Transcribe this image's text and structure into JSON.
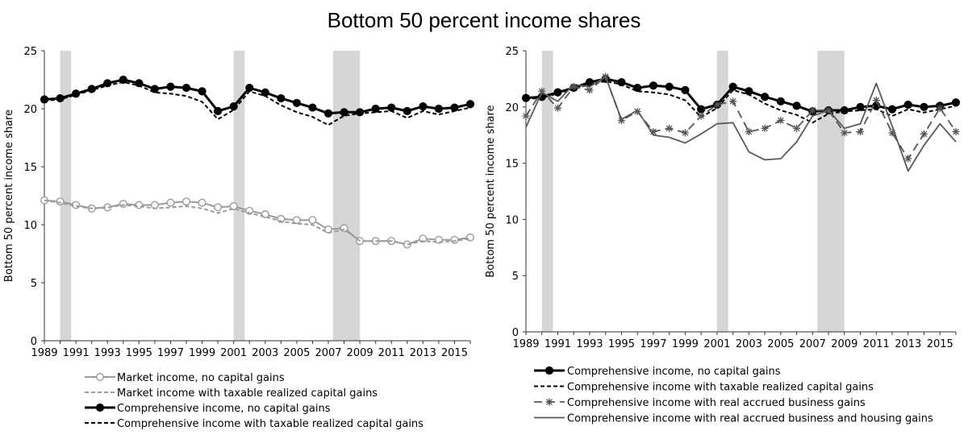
{
  "figure_title": "Bottom 50 percent income shares",
  "chart_data": [
    {
      "type": "line",
      "ylabel": "Bottom 50 percent income share",
      "ylim": [
        0,
        25
      ],
      "yticks": [
        "0",
        "5",
        "10",
        "15",
        "20",
        "25"
      ],
      "xlim": [
        1989,
        2016
      ],
      "xticks": [
        "1989",
        "1991",
        "1993",
        "1995",
        "1997",
        "1999",
        "2001",
        "2003",
        "2005",
        "2007",
        "2009",
        "2011",
        "2013",
        "2015"
      ],
      "recessions": [
        [
          1990,
          1990.7
        ],
        [
          2001,
          2001.7
        ],
        [
          2007.3,
          2009
        ]
      ],
      "x": [
        1989,
        1990,
        1991,
        1992,
        1993,
        1994,
        1995,
        1996,
        1997,
        1998,
        1999,
        2000,
        2001,
        2002,
        2003,
        2004,
        2005,
        2006,
        2007,
        2008,
        2009,
        2010,
        2011,
        2012,
        2013,
        2014,
        2015,
        2016
      ],
      "series": [
        {
          "name": "Market income, no capital gains",
          "style": "gray-open-circle",
          "color": "#9a9a9a",
          "values": [
            12.1,
            12.0,
            11.7,
            11.4,
            11.5,
            11.8,
            11.7,
            11.7,
            11.9,
            12.0,
            11.9,
            11.5,
            11.6,
            11.2,
            10.9,
            10.5,
            10.4,
            10.4,
            9.6,
            9.7,
            8.6,
            8.6,
            8.6,
            8.3,
            8.8,
            8.7,
            8.7,
            8.9
          ]
        },
        {
          "name": "Market income with taxable realized capital gains",
          "style": "gray-dashed",
          "color": "#9a9a9a",
          "values": [
            12.1,
            11.9,
            11.6,
            11.4,
            11.5,
            11.7,
            11.6,
            11.4,
            11.5,
            11.6,
            11.4,
            11.0,
            11.4,
            11.0,
            10.7,
            10.3,
            10.1,
            10.0,
            9.3,
            9.6,
            8.6,
            8.6,
            8.6,
            8.3,
            8.6,
            8.5,
            8.6,
            8.8
          ]
        },
        {
          "name": "Comprehensive income, no capital gains",
          "style": "black-filled-circle",
          "color": "#000000",
          "values": [
            20.8,
            20.9,
            21.3,
            21.7,
            22.2,
            22.5,
            22.2,
            21.7,
            21.9,
            21.8,
            21.5,
            19.8,
            20.2,
            21.8,
            21.4,
            20.9,
            20.5,
            20.1,
            19.6,
            19.7,
            19.7,
            20.0,
            20.1,
            19.8,
            20.2,
            20.0,
            20.1,
            20.4
          ]
        },
        {
          "name": "Comprehensive income with taxable realized capital gains",
          "style": "black-dashed",
          "color": "#000000",
          "values": [
            20.7,
            20.8,
            21.2,
            21.6,
            22.0,
            22.3,
            22.0,
            21.4,
            21.3,
            21.1,
            20.6,
            19.1,
            19.9,
            21.5,
            21.1,
            20.3,
            19.7,
            19.3,
            18.6,
            19.4,
            19.6,
            19.7,
            19.8,
            19.2,
            19.8,
            19.5,
            19.8,
            20.1
          ]
        }
      ],
      "legend": "bottom"
    },
    {
      "type": "line",
      "ylabel": "Bottom 50 percent income share",
      "ylim": [
        0,
        25
      ],
      "yticks": [
        "0",
        "5",
        "10",
        "15",
        "20",
        "25"
      ],
      "xlim": [
        1989,
        2016
      ],
      "xticks": [
        "1989",
        "1991",
        "1993",
        "1995",
        "1997",
        "1999",
        "2001",
        "2003",
        "2005",
        "2007",
        "2009",
        "2011",
        "2013",
        "2015"
      ],
      "recessions": [
        [
          1990,
          1990.7
        ],
        [
          2001,
          2001.7
        ],
        [
          2007.3,
          2009
        ]
      ],
      "x": [
        1989,
        1990,
        1991,
        1992,
        1993,
        1994,
        1995,
        1996,
        1997,
        1998,
        1999,
        2000,
        2001,
        2002,
        2003,
        2004,
        2005,
        2006,
        2007,
        2008,
        2009,
        2010,
        2011,
        2012,
        2013,
        2014,
        2015,
        2016
      ],
      "series": [
        {
          "name": "Comprehensive income, no capital gains",
          "style": "black-filled-circle",
          "color": "#000000",
          "values": [
            20.8,
            20.9,
            21.3,
            21.7,
            22.2,
            22.5,
            22.2,
            21.7,
            21.9,
            21.8,
            21.5,
            19.8,
            20.2,
            21.8,
            21.4,
            20.9,
            20.5,
            20.1,
            19.6,
            19.7,
            19.7,
            20.0,
            20.1,
            19.8,
            20.2,
            20.0,
            20.1,
            20.4
          ]
        },
        {
          "name": "Comprehensive income with taxable realized capital gains",
          "style": "black-dashed",
          "color": "#000000",
          "values": [
            20.7,
            20.8,
            21.2,
            21.6,
            22.0,
            22.3,
            22.0,
            21.4,
            21.3,
            21.1,
            20.6,
            19.1,
            19.9,
            21.5,
            21.1,
            20.3,
            19.7,
            19.3,
            18.6,
            19.4,
            19.6,
            19.7,
            19.8,
            19.2,
            19.8,
            19.5,
            19.8,
            20.1
          ]
        },
        {
          "name": "Comprehensive income with real accrued business gains",
          "style": "gray-dash-star",
          "color": "#555555",
          "values": [
            19.2,
            21.4,
            19.9,
            21.8,
            21.5,
            22.7,
            18.8,
            19.6,
            17.8,
            18.1,
            17.7,
            19.2,
            20.2,
            20.5,
            17.8,
            18.1,
            18.8,
            18.1,
            19.7,
            19.7,
            17.7,
            17.8,
            20.6,
            17.7,
            15.4,
            17.6,
            19.9,
            17.8
          ]
        },
        {
          "name": "Comprehensive income with real accrued business and housing gains",
          "style": "gray-solid",
          "color": "#5a5a5a",
          "values": [
            18.2,
            21.3,
            20.5,
            22.0,
            21.8,
            22.7,
            18.9,
            19.7,
            17.5,
            17.3,
            16.8,
            17.6,
            18.5,
            18.6,
            16.0,
            15.3,
            15.4,
            16.9,
            19.2,
            19.7,
            18.1,
            18.5,
            22.1,
            18.3,
            14.3,
            16.6,
            18.5,
            16.9
          ]
        }
      ],
      "legend": "bottom"
    }
  ]
}
